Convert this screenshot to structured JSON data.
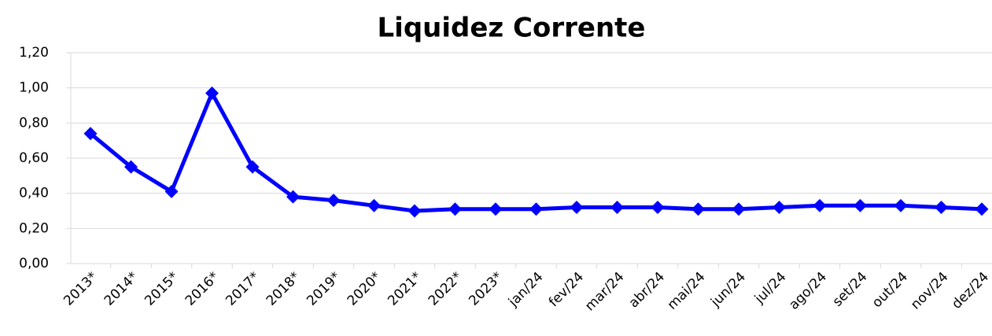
{
  "chart_data": {
    "type": "line",
    "title": "Liquidez Corrente",
    "categories": [
      "2013*",
      "2014*",
      "2015*",
      "2016*",
      "2017*",
      "2018*",
      "2019*",
      "2020*",
      "2021*",
      "2022*",
      "2023*",
      "jan/24",
      "fev/24",
      "mar/24",
      "abr/24",
      "mai/24",
      "jun/24",
      "jul/24",
      "ago/24",
      "set/24",
      "out/24",
      "nov/24",
      "dez/24"
    ],
    "series": [
      {
        "name": "Liquidez Corrente",
        "color": "#0000ff",
        "values": [
          0.74,
          0.55,
          0.41,
          0.97,
          0.55,
          0.38,
          0.36,
          0.33,
          0.3,
          0.31,
          0.31,
          0.31,
          0.32,
          0.32,
          0.32,
          0.31,
          0.31,
          0.32,
          0.33,
          0.33,
          0.33,
          0.32,
          0.31
        ]
      }
    ],
    "ylim": [
      0,
      1.2
    ],
    "yticks": [
      {
        "value": 0,
        "label": "0,00"
      },
      {
        "value": 0.2,
        "label": "0,20"
      },
      {
        "value": 0.4,
        "label": "0,40"
      },
      {
        "value": 0.6,
        "label": "0,60"
      },
      {
        "value": 0.8,
        "label": "0,80"
      },
      {
        "value": 1.0,
        "label": "1,00"
      },
      {
        "value": 1.2,
        "label": "1,20"
      }
    ],
    "grid": true
  }
}
